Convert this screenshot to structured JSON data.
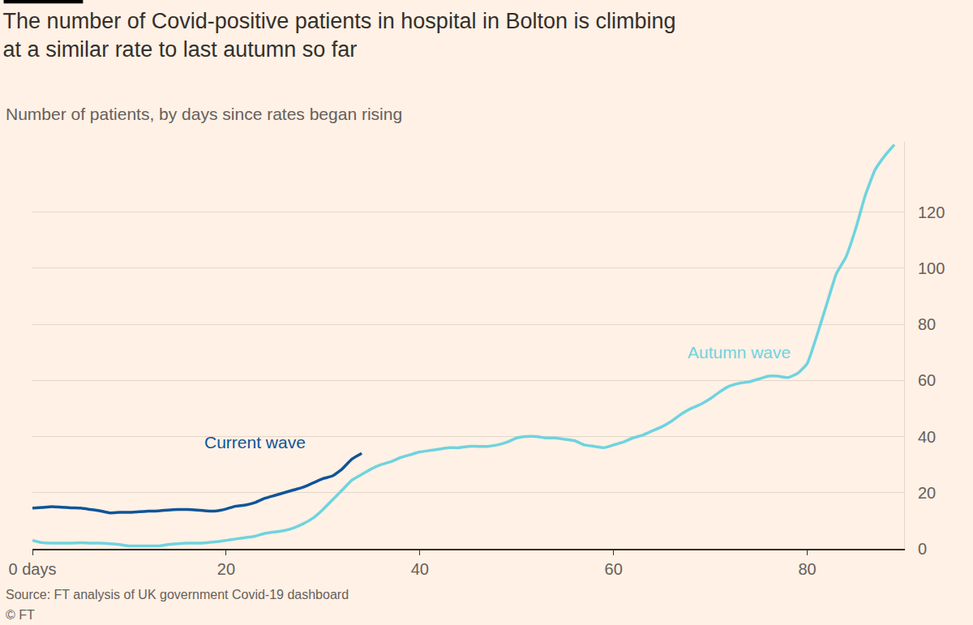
{
  "chart_data": {
    "type": "line",
    "title": "The number of Covid-positive patients in hospital in Bolton is climbing at a similar rate to last autumn so far",
    "subtitle": "Number of patients, by days since rates began rising",
    "source": "Source: FT analysis of UK government Covid-19 dashboard",
    "copyright": "© FT",
    "xlim": [
      0,
      90
    ],
    "xticks": [
      {
        "value": 0,
        "label": "0 days"
      },
      20,
      40,
      60,
      80
    ],
    "ylim": [
      0,
      145
    ],
    "yticks": [
      0,
      20,
      40,
      60,
      80,
      100,
      120
    ],
    "grid": true,
    "series": [
      {
        "name": "Current wave",
        "color": "#0f5499",
        "x": [
          0,
          1,
          2,
          3,
          4,
          5,
          6,
          7,
          8,
          9,
          10,
          11,
          12,
          13,
          14,
          15,
          16,
          17,
          18,
          19,
          20,
          21,
          22,
          23,
          24,
          25,
          26,
          27,
          28,
          29,
          30,
          31,
          32,
          33,
          34
        ],
        "values": [
          14.5,
          14.7,
          15,
          14.8,
          14.6,
          14.5,
          14,
          13.5,
          12.8,
          13,
          13,
          13.2,
          13.4,
          13.5,
          13.8,
          14,
          14,
          13.8,
          13.5,
          13.5,
          14.2,
          15.2,
          15.6,
          16.5,
          18,
          19,
          20,
          21,
          22,
          23.5,
          25,
          26,
          28.5,
          32,
          34
        ]
      },
      {
        "name": "Autumn wave",
        "color": "#6fd3df",
        "x": [
          0,
          1,
          2,
          3,
          4,
          5,
          6,
          7,
          8,
          9,
          10,
          11,
          12,
          13,
          14,
          15,
          16,
          17,
          18,
          19,
          20,
          21,
          22,
          23,
          24,
          25,
          26,
          27,
          28,
          29,
          30,
          31,
          32,
          33,
          34,
          35,
          36,
          37,
          38,
          39,
          40,
          41,
          42,
          43,
          44,
          45,
          46,
          47,
          48,
          49,
          50,
          51,
          52,
          53,
          54,
          55,
          56,
          57,
          58,
          59,
          60,
          61,
          62,
          63,
          64,
          65,
          66,
          67,
          68,
          69,
          70,
          71,
          72,
          73,
          74,
          75,
          76,
          77,
          78,
          79,
          80,
          81,
          82,
          83,
          84,
          85,
          86,
          87,
          88,
          89
        ],
        "values": [
          3,
          2.2,
          2,
          2,
          2,
          2.2,
          2,
          2,
          1.8,
          1.5,
          1,
          1,
          1,
          1,
          1.5,
          1.8,
          2,
          2,
          2.2,
          2.5,
          3,
          3.5,
          4,
          4.5,
          5.5,
          6,
          6.5,
          7.5,
          9,
          11,
          14,
          17.5,
          21,
          24.5,
          26.5,
          28.5,
          30,
          31,
          32.5,
          33.5,
          34.5,
          35,
          35.5,
          36,
          36,
          36.5,
          36.5,
          36.5,
          37,
          38,
          39.5,
          40,
          40,
          39.5,
          39.5,
          39,
          38.5,
          37,
          36.5,
          36,
          37,
          38,
          39.5,
          40.5,
          42,
          43.5,
          45.5,
          48,
          50,
          51.5,
          53.5,
          56,
          58,
          59,
          59.5,
          60.5,
          61.5,
          61.5,
          61,
          62.5,
          66,
          76,
          87,
          98,
          104,
          114,
          126,
          135,
          140,
          144
        ]
      }
    ]
  }
}
